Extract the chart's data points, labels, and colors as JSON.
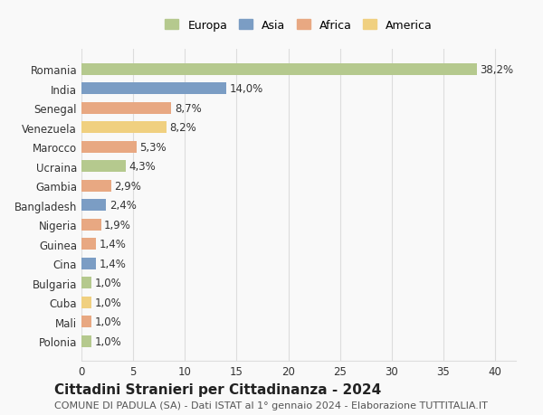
{
  "countries": [
    "Romania",
    "India",
    "Senegal",
    "Venezuela",
    "Marocco",
    "Ucraina",
    "Gambia",
    "Bangladesh",
    "Nigeria",
    "Guinea",
    "Cina",
    "Bulgaria",
    "Cuba",
    "Mali",
    "Polonia"
  ],
  "values": [
    38.2,
    14.0,
    8.7,
    8.2,
    5.3,
    4.3,
    2.9,
    2.4,
    1.9,
    1.4,
    1.4,
    1.0,
    1.0,
    1.0,
    1.0
  ],
  "labels": [
    "38,2%",
    "14,0%",
    "8,7%",
    "8,2%",
    "5,3%",
    "4,3%",
    "2,9%",
    "2,4%",
    "1,9%",
    "1,4%",
    "1,4%",
    "1,0%",
    "1,0%",
    "1,0%",
    "1,0%"
  ],
  "continents": [
    "Europa",
    "Asia",
    "Africa",
    "America",
    "Africa",
    "Europa",
    "Africa",
    "Asia",
    "Africa",
    "Africa",
    "Asia",
    "Europa",
    "America",
    "Africa",
    "Europa"
  ],
  "continent_colors": {
    "Europa": "#b5c98e",
    "Asia": "#7b9dc4",
    "Africa": "#e8a882",
    "America": "#f0d080"
  },
  "legend_order": [
    "Europa",
    "Asia",
    "Africa",
    "America"
  ],
  "title": "Cittadini Stranieri per Cittadinanza - 2024",
  "subtitle": "COMUNE DI PADULA (SA) - Dati ISTAT al 1° gennaio 2024 - Elaborazione TUTTITALIA.IT",
  "xlim": [
    0,
    42
  ],
  "xticks": [
    0,
    5,
    10,
    15,
    20,
    25,
    30,
    35,
    40
  ],
  "background_color": "#f9f9f9",
  "grid_color": "#dddddd",
  "bar_height": 0.6,
  "label_fontsize": 8.5,
  "tick_fontsize": 8.5,
  "title_fontsize": 11,
  "subtitle_fontsize": 8
}
